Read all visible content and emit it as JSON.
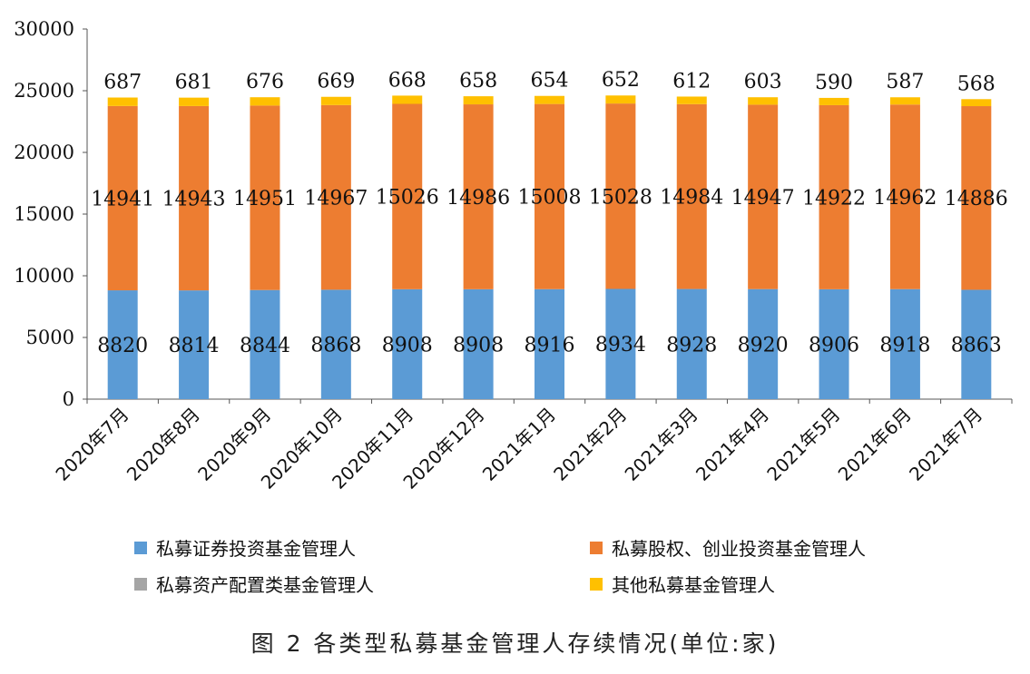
{
  "chart_data": {
    "type": "bar",
    "stacked": true,
    "categories": [
      "2020年7月",
      "2020年8月",
      "2020年9月",
      "2020年10月",
      "2020年11月",
      "2020年12月",
      "2021年1月",
      "2021年2月",
      "2021年3月",
      "2021年4月",
      "2021年5月",
      "2021年6月",
      "2021年7月"
    ],
    "series": [
      {
        "name": "私募证券投资基金管理人",
        "color": "#5b9bd5",
        "values": [
          8820,
          8814,
          8844,
          8868,
          8908,
          8908,
          8916,
          8934,
          8928,
          8920,
          8906,
          8918,
          8863
        ]
      },
      {
        "name": "私募股权、创业投资基金管理人",
        "color": "#ed7d31",
        "values": [
          14941,
          14943,
          14951,
          14967,
          15026,
          14986,
          15008,
          15028,
          14984,
          14947,
          14922,
          14962,
          14886
        ]
      },
      {
        "name": "私募资产配置类基金管理人",
        "color": "#a5a5a5",
        "values": [
          0,
          0,
          0,
          0,
          0,
          0,
          0,
          0,
          0,
          0,
          0,
          0,
          0
        ]
      },
      {
        "name": "其他私募基金管理人",
        "color": "#ffc000",
        "values": [
          687,
          681,
          676,
          669,
          668,
          658,
          654,
          652,
          612,
          603,
          590,
          587,
          568
        ]
      }
    ],
    "ylim": [
      0,
      30000
    ],
    "yticks": [
      0,
      5000,
      10000,
      15000,
      20000,
      25000,
      30000
    ],
    "legend_position": "bottom",
    "grid": false,
    "caption": "图 2  各类型私募基金管理人存续情况(单位:家)"
  }
}
